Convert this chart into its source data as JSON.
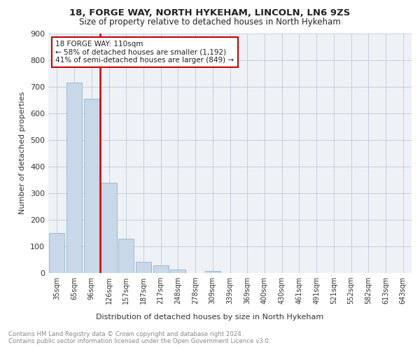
{
  "title1": "18, FORGE WAY, NORTH HYKEHAM, LINCOLN, LN6 9ZS",
  "title2": "Size of property relative to detached houses in North Hykeham",
  "xlabel": "Distribution of detached houses by size in North Hykeham",
  "ylabel": "Number of detached properties",
  "categories": [
    "35sqm",
    "65sqm",
    "96sqm",
    "126sqm",
    "157sqm",
    "187sqm",
    "217sqm",
    "248sqm",
    "278sqm",
    "309sqm",
    "339sqm",
    "369sqm",
    "400sqm",
    "430sqm",
    "461sqm",
    "491sqm",
    "521sqm",
    "552sqm",
    "582sqm",
    "613sqm",
    "643sqm"
  ],
  "values": [
    150,
    715,
    655,
    340,
    130,
    42,
    30,
    12,
    0,
    8,
    0,
    0,
    0,
    0,
    0,
    0,
    0,
    0,
    0,
    0,
    0
  ],
  "bar_color": "#c8d8e8",
  "bar_edge_color": "#a0b8d0",
  "vline_color": "#cc0000",
  "annotation_text": "18 FORGE WAY: 110sqm\n← 58% of detached houses are smaller (1,192)\n41% of semi-detached houses are larger (849) →",
  "annotation_box_color": "#ffffff",
  "annotation_box_edge": "#cc0000",
  "footer_text": "Contains HM Land Registry data © Crown copyright and database right 2024.\nContains public sector information licensed under the Open Government Licence v3.0.",
  "bg_color": "#eef2f7",
  "ylim": [
    0,
    900
  ],
  "yticks": [
    0,
    100,
    200,
    300,
    400,
    500,
    600,
    700,
    800,
    900
  ]
}
